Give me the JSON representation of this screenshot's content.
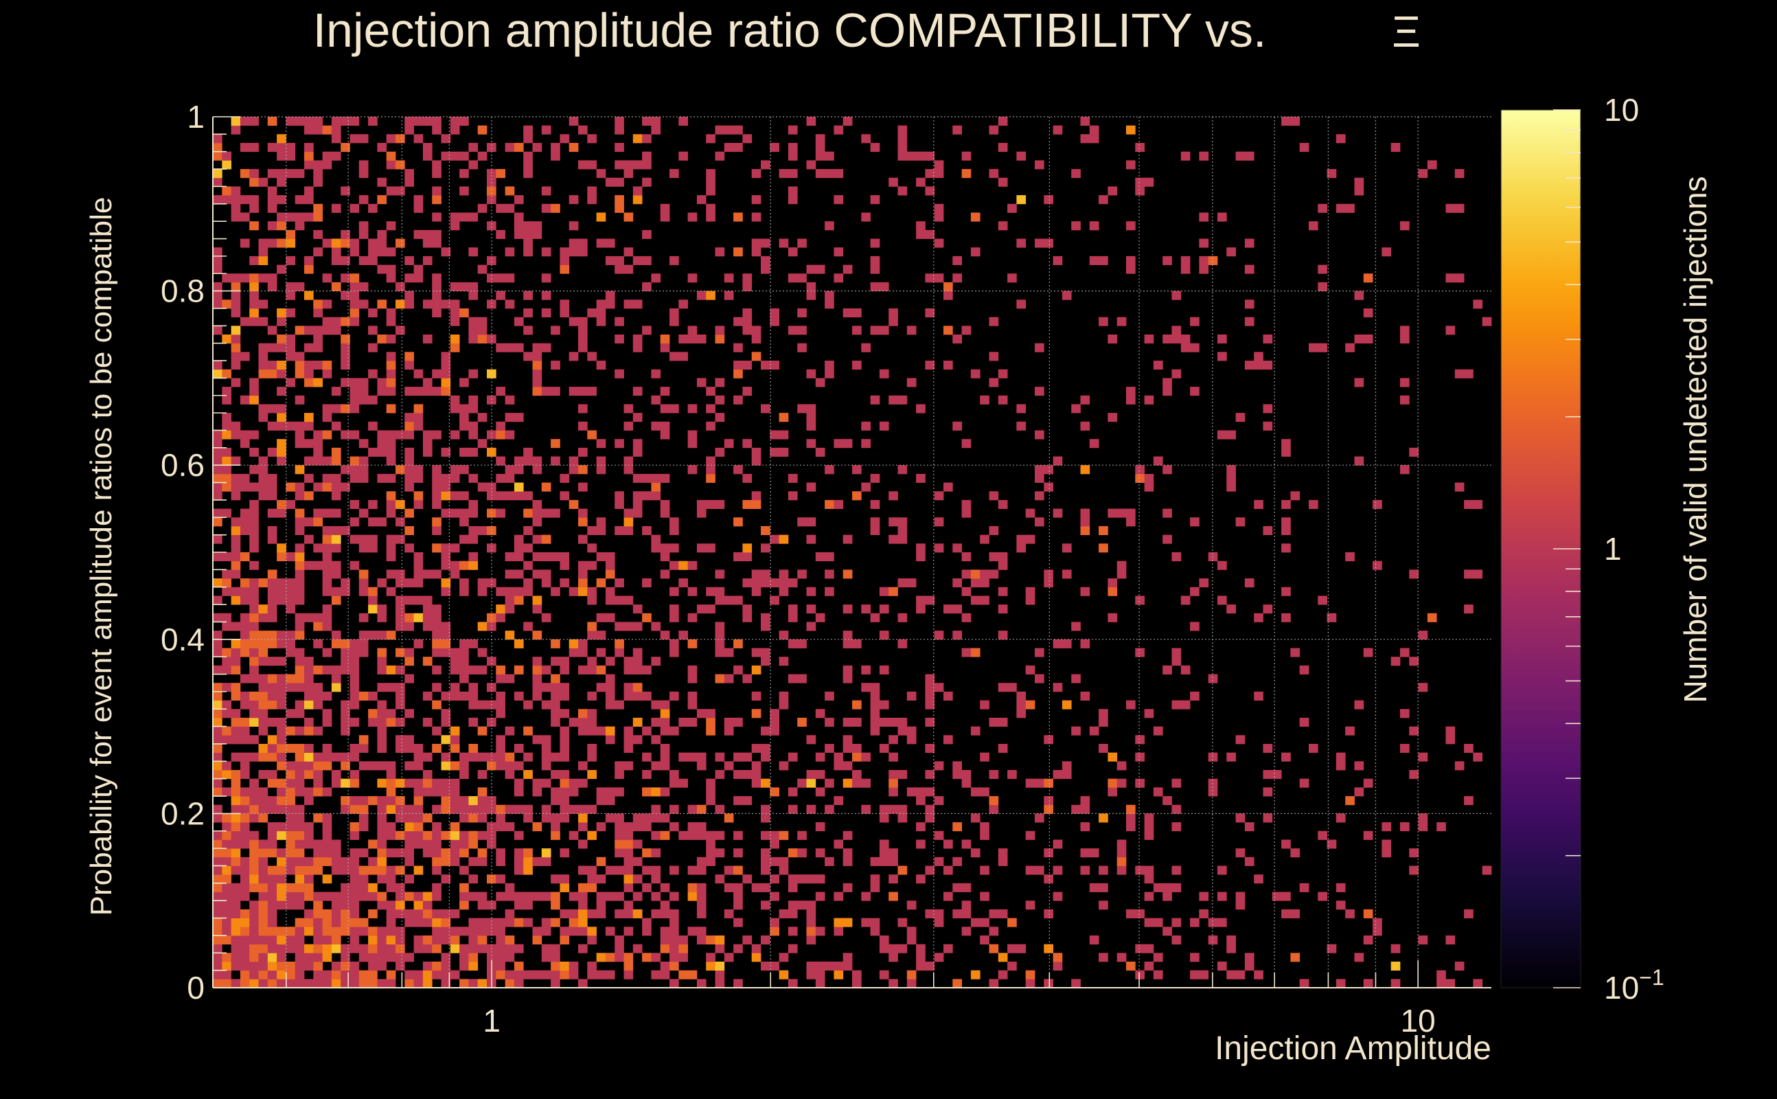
{
  "chart_data": {
    "type": "heatmap",
    "title": "Injection amplitude ratio COMPATIBILITY vs.",
    "title_symbol": "Ξ",
    "xlabel": "Injection Amplitude",
    "ylabel": "Probability for event amplitude ratios to be compatible",
    "zlabel": "Number of valid undetected injections",
    "x_scale": "log",
    "xlim": [
      0.5,
      12
    ],
    "ylim": [
      0,
      1
    ],
    "zlim": [
      0.1,
      10
    ],
    "z_scale": "log",
    "grid": true,
    "x_tick_labels": [
      {
        "value": 1,
        "label": "1"
      },
      {
        "value": 10,
        "label": "10"
      }
    ],
    "y_tick_labels": [
      {
        "value": 0,
        "label": "0"
      },
      {
        "value": 0.2,
        "label": "0.2"
      },
      {
        "value": 0.4,
        "label": "0.4"
      },
      {
        "value": 0.6,
        "label": "0.6"
      },
      {
        "value": 0.8,
        "label": "0.8"
      },
      {
        "value": 1,
        "label": "1"
      }
    ],
    "colorbar_tick_labels": [
      {
        "value": 10,
        "label": "10",
        "exp": ""
      },
      {
        "value": 1,
        "label": "1",
        "exp": ""
      },
      {
        "value": 0.1,
        "label": "10",
        "exp": "−1"
      }
    ],
    "binning": {
      "x_bins": 140,
      "y_bins": 100
    },
    "density_description": "Bin counts mostly 1-3; highest density at low amplitude (0.5-2) and low probability (0-0.5), decreasing toward high amplitude and high probability.",
    "colors": {
      "background": "#000000",
      "text": "#f2e6cc",
      "grid": "#bbbbbb",
      "colormap": [
        "#000004",
        "#1b0c41",
        "#4a0c6b",
        "#781c6d",
        "#a52c60",
        "#cf4446",
        "#ed6925",
        "#fb9b06",
        "#f7d13d",
        "#fcffa4"
      ]
    }
  }
}
